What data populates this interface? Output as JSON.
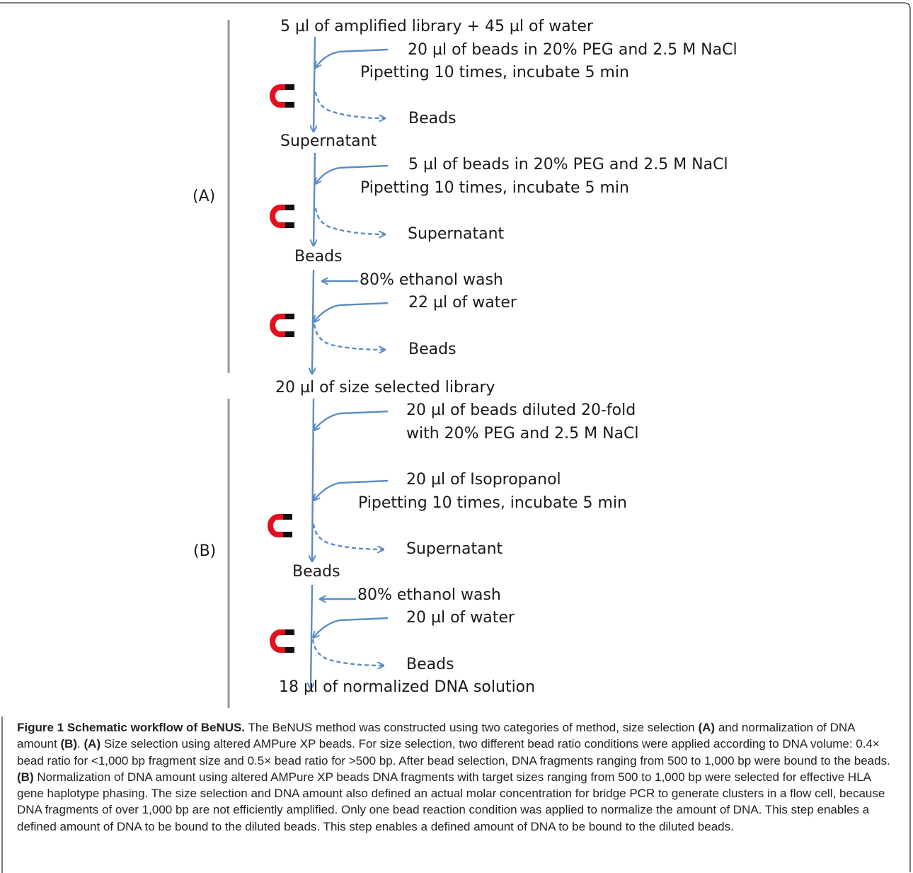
{
  "diagram": {
    "section_a_label": "(A)",
    "section_b_label": "(B)",
    "steps": {
      "a_start": "5 µl of amplified library + 45 µl of water",
      "a_add1": "20 µl of beads in 20% PEG and 2.5 M NaCl",
      "a_pip1": "Pipetting 10 times, incubate 5 min",
      "a_out1": "Beads",
      "a_mid1": "Supernatant",
      "a_add2": "5 µl of beads in 20% PEG and 2.5 M NaCl",
      "a_pip2": "Pipetting 10 times, incubate 5 min",
      "a_out2": "Supernatant",
      "a_mid2": "Beads",
      "a_wash": "80% ethanol wash",
      "a_water": "22 µl of water",
      "a_out3": "Beads",
      "ab_mid": "20 µl of  size selected library",
      "b_add1_l1": "20 µl of beads diluted 20-fold",
      "b_add1_l2": "with  20% PEG and 2.5 M NaCl",
      "b_add2": "20 µl of Isopropanol",
      "b_pip": "Pipetting 10 times, incubate 5 min",
      "b_out1": "Supernatant",
      "b_mid": "Beads",
      "b_wash": "80% ethanol wash",
      "b_water": "20 µl of water",
      "b_out2": "Beads",
      "b_end": "18 µl of normalized DNA solution"
    },
    "colors": {
      "arrow": "#5b8cc4",
      "magnet_red": "#e4101e",
      "magnet_tip": "#111111",
      "section_line": "#9a9a9a"
    },
    "icons": [
      "magnet-icon"
    ]
  },
  "caption": {
    "title": "Figure 1 Schematic workflow of BeNUS.",
    "p1": " The BeNUS method was constructed using two categories of method, size selection ",
    "ref_a1": "(A)",
    "p2": " and normalization of DNA amount ",
    "ref_b1": "(B)",
    "p3": ". ",
    "ref_a2": "(A)",
    "p4": " Size selection using altered AMPure XP beads. For size selection, two different bead ratio conditions were applied according to DNA volume: 0.4× bead ratio for <1,000 bp fragment size and 0.5× bead ratio for >500 bp. After bead selection, DNA fragments ranging from 500 to 1,000 bp were bound to the beads. ",
    "ref_b2": "(B)",
    "p5": " Normalization of DNA amount using altered AMPure XP beads DNA fragments with target sizes ranging from 500 to 1,000 bp were selected for effective HLA gene haplotype phasing. The size selection and DNA amount also defined an actual molar concentration for bridge PCR to generate clusters in a flow cell, because DNA fragments of over 1,000 bp are not efficiently amplified. Only one bead reaction condition was applied to normalize the amount of DNA. This step enables a defined amount of DNA to be bound to the diluted beads. This step enables a defined amount of DNA to be bound to the diluted beads."
  }
}
